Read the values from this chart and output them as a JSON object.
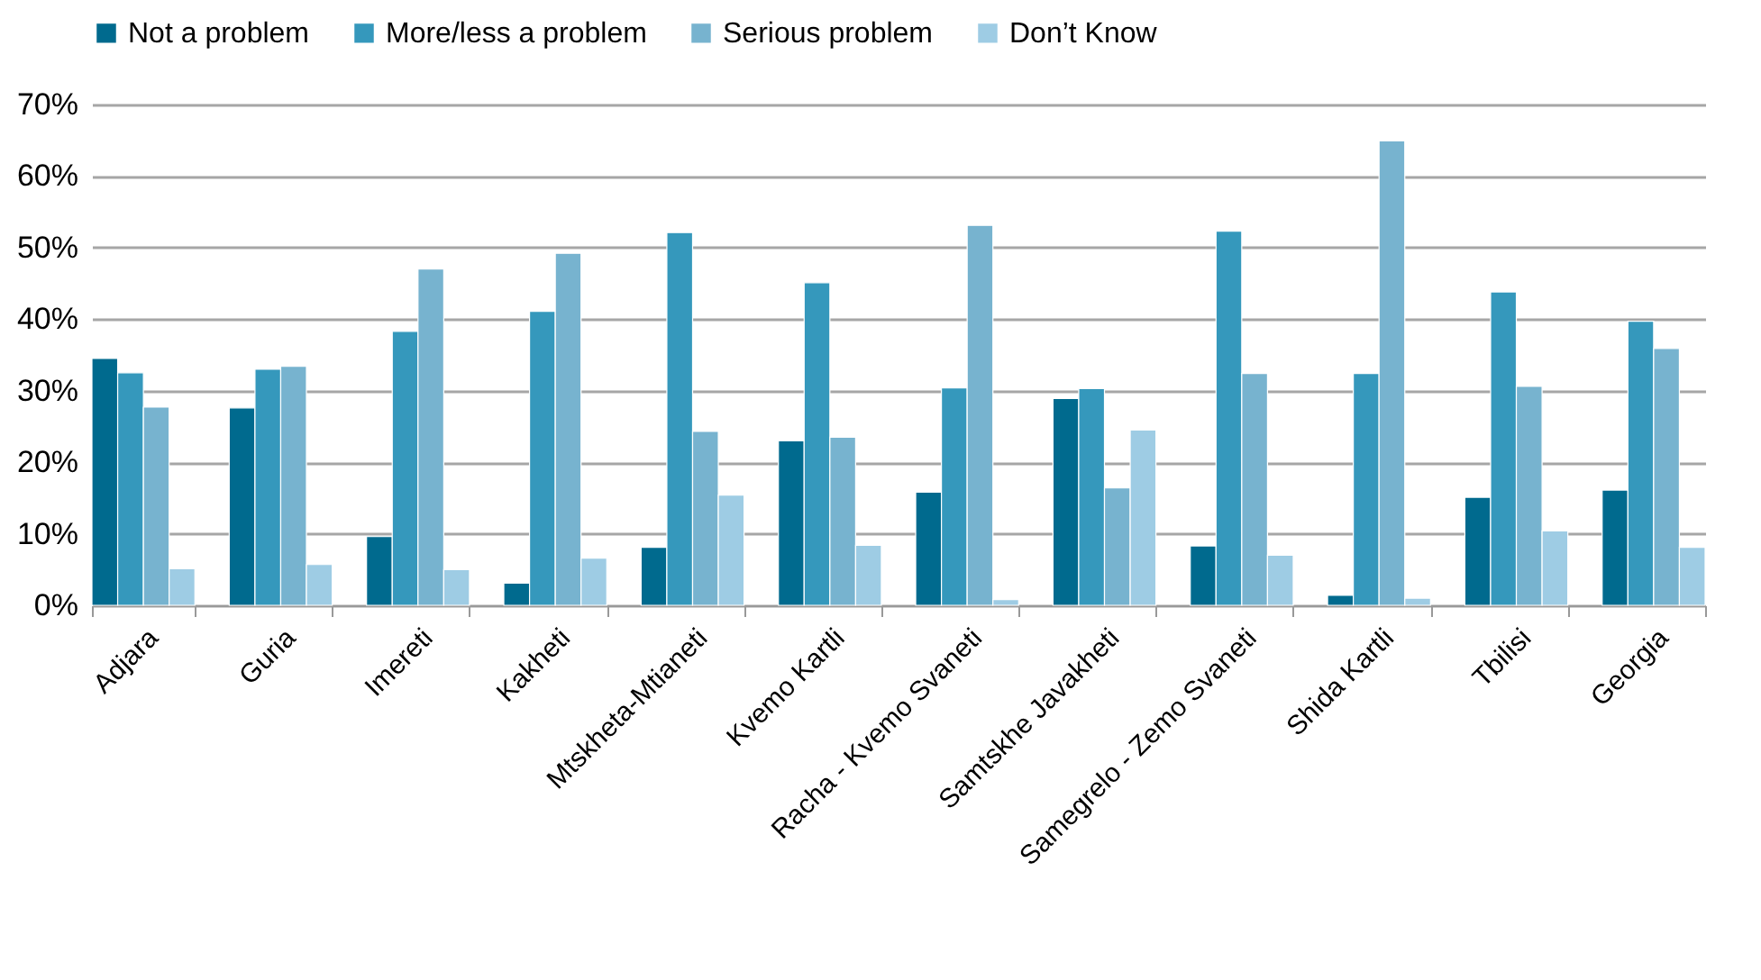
{
  "chart_data": {
    "type": "bar",
    "categories": [
      "Adjara",
      "Guria",
      "Imereti",
      "Kakheti",
      "Mtskheta-Mtianeti",
      "Kvemo Kartli",
      "Racha - Kvemo Svaneti",
      "Samtskhe Javakheti",
      "Samegrelo - Zemo Svaneti",
      "Shida Kartli",
      "Tbilisi",
      "Georgia"
    ],
    "series": [
      {
        "name": "Not a problem",
        "color": "#006a8e",
        "values": [
          34.5,
          27.6,
          9.6,
          3.1,
          8.1,
          23,
          15.8,
          28.9,
          8.3,
          1.4,
          15.1,
          16.1
        ]
      },
      {
        "name": "More/less a problem",
        "color": "#3598bc",
        "values": [
          32.5,
          33,
          38.3,
          41.1,
          52.1,
          45.1,
          30.4,
          30.3,
          52.3,
          32.4,
          43.8,
          39.7
        ]
      },
      {
        "name": "Serious problem",
        "color": "#77b3cf",
        "values": [
          27.7,
          33.4,
          47,
          49.2,
          24.3,
          23.5,
          53.1,
          16.4,
          32.4,
          64.9,
          30.6,
          35.9
        ]
      },
      {
        "name": "Don’t Know",
        "color": "#9ecce4",
        "values": [
          5.1,
          5.7,
          5,
          6.6,
          15.4,
          8.4,
          0.8,
          24.5,
          7,
          1,
          10.4,
          8.1
        ]
      }
    ],
    "ylim": [
      0,
      70
    ],
    "yticks": [
      {
        "value": 0,
        "label": "0%"
      },
      {
        "value": 10,
        "label": "10%"
      },
      {
        "value": 20,
        "label": "20%"
      },
      {
        "value": 30,
        "label": "30%"
      },
      {
        "value": 40,
        "label": "40%"
      },
      {
        "value": 50,
        "label": "50%"
      },
      {
        "value": 60,
        "label": "60%"
      },
      {
        "value": 70,
        "label": "70%"
      }
    ],
    "grid": "y",
    "legend": "top"
  }
}
